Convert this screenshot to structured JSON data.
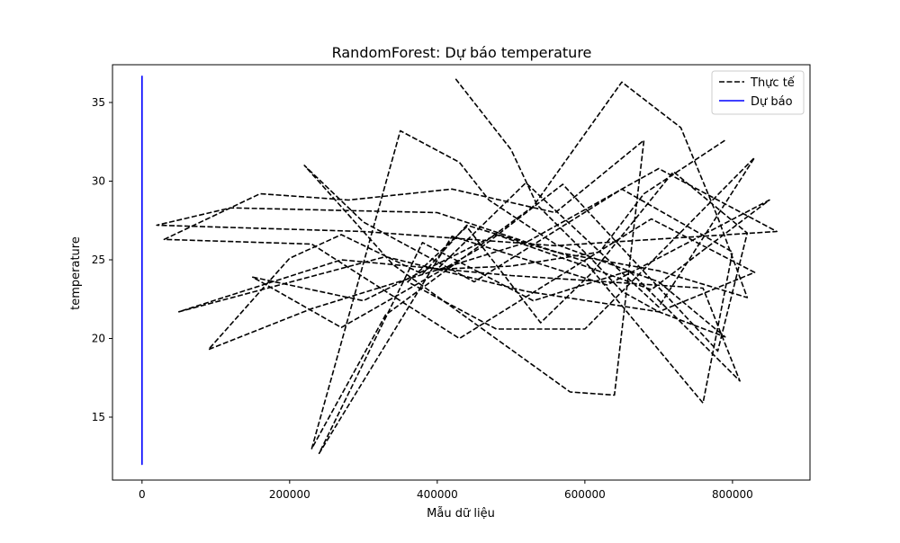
{
  "chart_data": {
    "type": "line",
    "title": "RandomForest: Dự báo temperature",
    "xlabel": "Mẫu dữ liệu",
    "ylabel": "temperature",
    "xlim": [
      -40000,
      905000
    ],
    "ylim": [
      11.0,
      37.4
    ],
    "x_ticks": [
      0,
      200000,
      400000,
      600000,
      800000
    ],
    "y_ticks": [
      15,
      20,
      25,
      30,
      35
    ],
    "grid": false,
    "legend_position": "top-right",
    "series": [
      {
        "name": "Thực tế",
        "style": "dashed",
        "color": "#000000",
        "x": [
          425000,
          500000,
          535000,
          610000,
          650000,
          700000,
          790000,
          700000,
          560000,
          470000,
          430000,
          350000,
          230000,
          330000,
          530000,
          650000,
          730000,
          780000,
          820000,
          700000,
          560000,
          440000,
          380000,
          270000,
          200000,
          90000,
          230000,
          520000,
          700000,
          860000,
          560000,
          300000,
          20000,
          120000,
          400000,
          600000,
          760000,
          800000,
          650000,
          450000,
          300000,
          220000,
          340000,
          580000,
          640000,
          680000,
          560000,
          420000,
          280000,
          160000,
          30000,
          230000,
          430000,
          690000,
          830000,
          700000,
          520000,
          330000,
          50000,
          270000,
          500000,
          760000,
          810000,
          660000,
          530000,
          380000,
          240000,
          420000,
          630000,
          850000,
          690000,
          480000,
          300000,
          150000,
          270000,
          460000,
          570000,
          780000,
          820000,
          720000,
          610000,
          540000,
          440000,
          360000,
          480000,
          600000,
          830000,
          700000,
          520000,
          400000,
          500000,
          620000,
          680000,
          790000
        ],
        "y": [
          36.5,
          32.0,
          28.5,
          25.0,
          23.0,
          21.7,
          20.1,
          23.6,
          26.0,
          28.8,
          31.2,
          33.2,
          13.0,
          21.5,
          28.4,
          36.3,
          33.4,
          27.7,
          22.6,
          24.3,
          25.5,
          27.2,
          24.1,
          26.6,
          25.1,
          19.3,
          21.9,
          26.1,
          30.8,
          26.8,
          25.9,
          26.8,
          27.2,
          28.3,
          28.0,
          24.9,
          15.9,
          25.5,
          29.5,
          23.6,
          27.4,
          31.0,
          24.7,
          16.6,
          16.4,
          32.6,
          28.0,
          29.5,
          28.8,
          29.2,
          26.3,
          26.0,
          20.0,
          27.6,
          24.2,
          21.7,
          23.0,
          25.2,
          21.7,
          25.0,
          24.0,
          23.2,
          17.3,
          24.3,
          22.4,
          26.1,
          12.7,
          26.5,
          23.4,
          28.8,
          23.1,
          26.6,
          22.4,
          23.9,
          20.7,
          25.8,
          29.8,
          19.2,
          26.7,
          30.6,
          24.2,
          21.0,
          27.1,
          23.6,
          20.6,
          20.6,
          31.5,
          22.0,
          29.9,
          24.4,
          24.6,
          25.5,
          29.2,
          32.6
        ]
      },
      {
        "name": "Dự báo",
        "style": "solid",
        "color": "#0000ff",
        "x": [
          0,
          0,
          0,
          0,
          0,
          0,
          0,
          0,
          0,
          0
        ],
        "y": [
          36.7,
          12.0,
          35.8,
          13.1,
          34.5,
          14.3,
          31.0,
          16.8,
          28.6,
          19.9
        ]
      }
    ]
  }
}
